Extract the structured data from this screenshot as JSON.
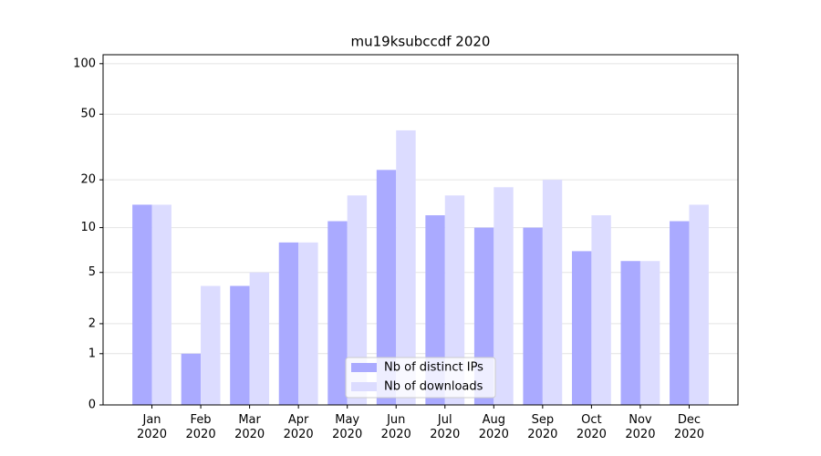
{
  "chart_data": {
    "type": "bar",
    "title": "mu19ksubccdf 2020",
    "categories": [
      "Jan\n2020",
      "Feb\n2020",
      "Mar\n2020",
      "Apr\n2020",
      "May\n2020",
      "Jun\n2020",
      "Jul\n2020",
      "Aug\n2020",
      "Sep\n2020",
      "Oct\n2020",
      "Nov\n2020",
      "Dec\n2020"
    ],
    "series": [
      {
        "name": "Nb of distinct IPs",
        "color": "#aaaaff",
        "values": [
          14,
          1,
          4,
          8,
          11,
          23,
          12,
          10,
          10,
          7,
          6,
          11
        ]
      },
      {
        "name": "Nb of downloads",
        "color": "#dcdcff",
        "values": [
          14,
          4,
          5,
          8,
          16,
          40,
          16,
          18,
          20,
          12,
          6,
          14
        ]
      }
    ],
    "yscale": "log1p",
    "ylim": [
      0,
      113
    ],
    "yticks": [
      0,
      1,
      2,
      5,
      10,
      20,
      50,
      100
    ],
    "grid": true,
    "legend": "lower center"
  }
}
